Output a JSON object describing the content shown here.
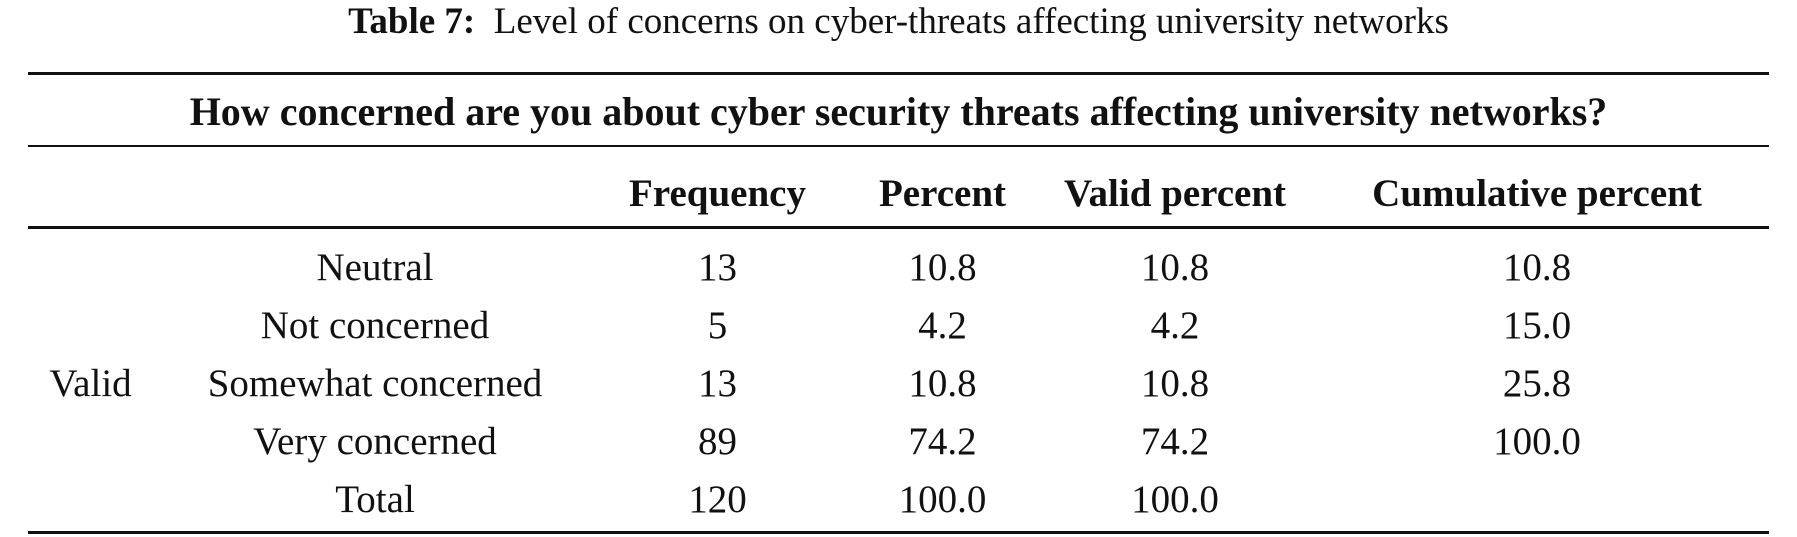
{
  "caption": {
    "label": "Table 7:",
    "text": "Level of concerns on cyber-threats affecting university networks"
  },
  "question": "How concerned are you about cyber security threats affecting university networks?",
  "headers": {
    "frequency": "Frequency",
    "percent": "Percent",
    "valid_percent": "Valid percent",
    "cumulative_percent": "Cumulative percent"
  },
  "stub": "Valid",
  "rows": [
    {
      "category": "Neutral",
      "frequency": "13",
      "percent": "10.8",
      "valid_percent": "10.8",
      "cumulative_percent": "10.8"
    },
    {
      "category": "Not concerned",
      "frequency": "5",
      "percent": "4.2",
      "valid_percent": "4.2",
      "cumulative_percent": "15.0"
    },
    {
      "category": "Somewhat concerned",
      "frequency": "13",
      "percent": "10.8",
      "valid_percent": "10.8",
      "cumulative_percent": "25.8"
    },
    {
      "category": "Very concerned",
      "frequency": "89",
      "percent": "74.2",
      "valid_percent": "74.2",
      "cumulative_percent": "100.0"
    },
    {
      "category": "Total",
      "frequency": "120",
      "percent": "100.0",
      "valid_percent": "100.0",
      "cumulative_percent": ""
    }
  ]
}
